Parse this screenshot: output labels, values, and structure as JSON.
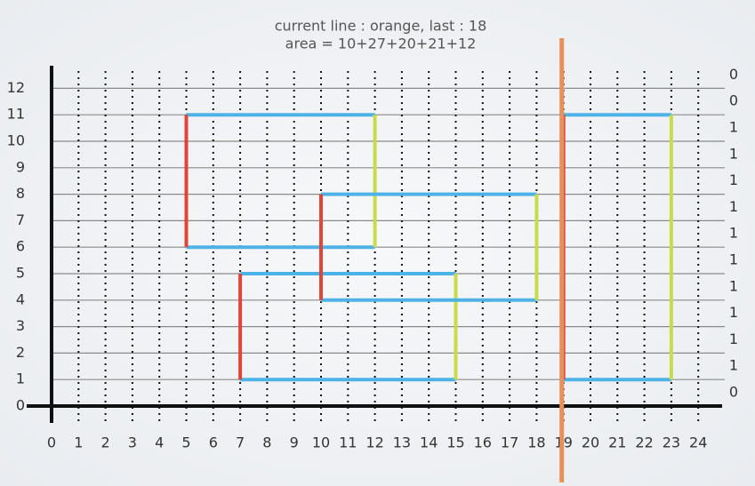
{
  "title": "current line : orange, last : 18",
  "subtitle": "area = 10+27+20+21+12",
  "x_labels": [
    0,
    1,
    2,
    3,
    4,
    5,
    6,
    7,
    8,
    9,
    10,
    11,
    12,
    13,
    14,
    15,
    16,
    17,
    18,
    19,
    20,
    21,
    22,
    23,
    24
  ],
  "y_labels": [
    0,
    1,
    2,
    3,
    4,
    5,
    6,
    7,
    8,
    9,
    10,
    11,
    12
  ],
  "counts": [
    0,
    1,
    1,
    1,
    1,
    1,
    1,
    1,
    1,
    1,
    1,
    0,
    0
  ],
  "rects": [
    {
      "x": [
        5,
        12
      ],
      "y": [
        6,
        11
      ]
    },
    {
      "x": [
        7,
        15
      ],
      "y": [
        1,
        5
      ]
    },
    {
      "x": [
        10,
        18
      ],
      "y": [
        4,
        8
      ]
    },
    {
      "x": [
        19,
        23
      ],
      "y": [
        1,
        11
      ]
    }
  ],
  "sweep": 19
}
